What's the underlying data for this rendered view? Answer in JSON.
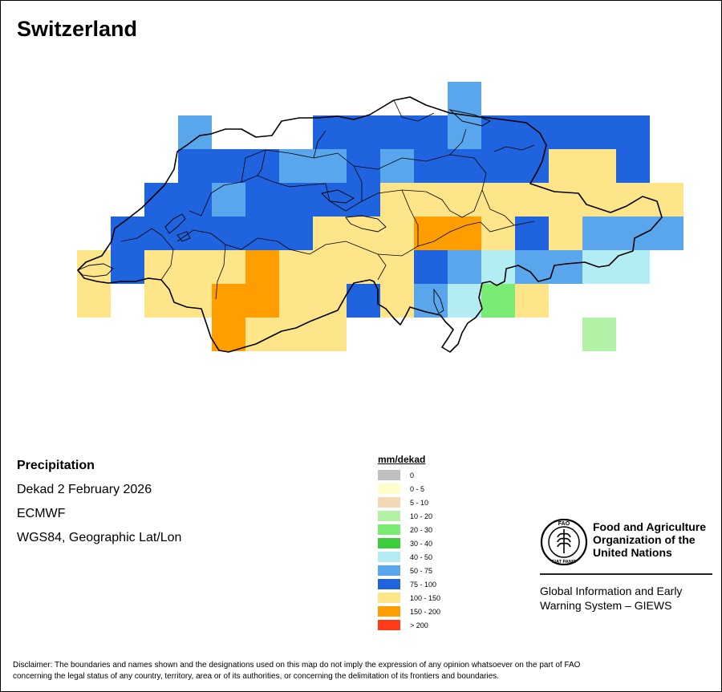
{
  "title": "Switzerland",
  "info": {
    "variable": "Precipitation",
    "period": "Dekad 2 February 2026",
    "source": "ECMWF",
    "projection": "WGS84, Geographic Lat/Lon"
  },
  "legend": {
    "title": "mm/dekad",
    "classes": [
      {
        "label": "0",
        "color": "#c0c0c0"
      },
      {
        "label": "0 - 5",
        "color": "#ffffcc"
      },
      {
        "label": "5 - 10",
        "color": "#f2d9b3"
      },
      {
        "label": "10 - 20",
        "color": "#b3f2a6"
      },
      {
        "label": "20 - 30",
        "color": "#7aeb73"
      },
      {
        "label": "30 - 40",
        "color": "#3dcc3d"
      },
      {
        "label": "40 - 50",
        "color": "#b3ecf2"
      },
      {
        "label": "50 - 75",
        "color": "#5aa6ec"
      },
      {
        "label": "75 - 100",
        "color": "#1f63de"
      },
      {
        "label": "100 - 150",
        "color": "#ffe58a"
      },
      {
        "label": "150 - 200",
        "color": "#ff9e00"
      },
      {
        "label": "> 200",
        "color": "#ff3b1a"
      }
    ]
  },
  "grid_rows": [
    "...........L......",
    "...L...BBBBLBBBBB.",
    "...BBBLLBLBBBBYYB.",
    "..BBLBBBBYYYYYYYYY",
    ".BBBBBBYYYAAYBYLLL",
    "YBYYYAYYYYBLCLLCC.",
    "Y.YYAAYYBYLCGY....",
    "....AYYY.......R.."
  ],
  "grid_codes": {
    "L": "50 - 75",
    "B": "75 - 100",
    "Y": "100 - 150",
    "A": "150 - 200",
    "C": "40 - 50",
    "G": "20 - 30",
    "R": "10 - 20"
  },
  "org": {
    "name_lines": [
      "Food and Agriculture",
      "Organization of the",
      "United Nations"
    ],
    "logo_text": "FAO",
    "logo_ring": "FIAT PANIS",
    "giews_lines": [
      "Global Information and Early",
      "Warning System – GIEWS"
    ]
  },
  "disclaimer_lines": [
    "Disclaimer: The boundaries and names shown and the designations used on this map do not imply the expression of any opinion whatsoever on the part of FAO",
    "concerning the legal status of any country, territory, area or of its authorities, or concerning the delimitation of its frontiers and boundaries."
  ]
}
